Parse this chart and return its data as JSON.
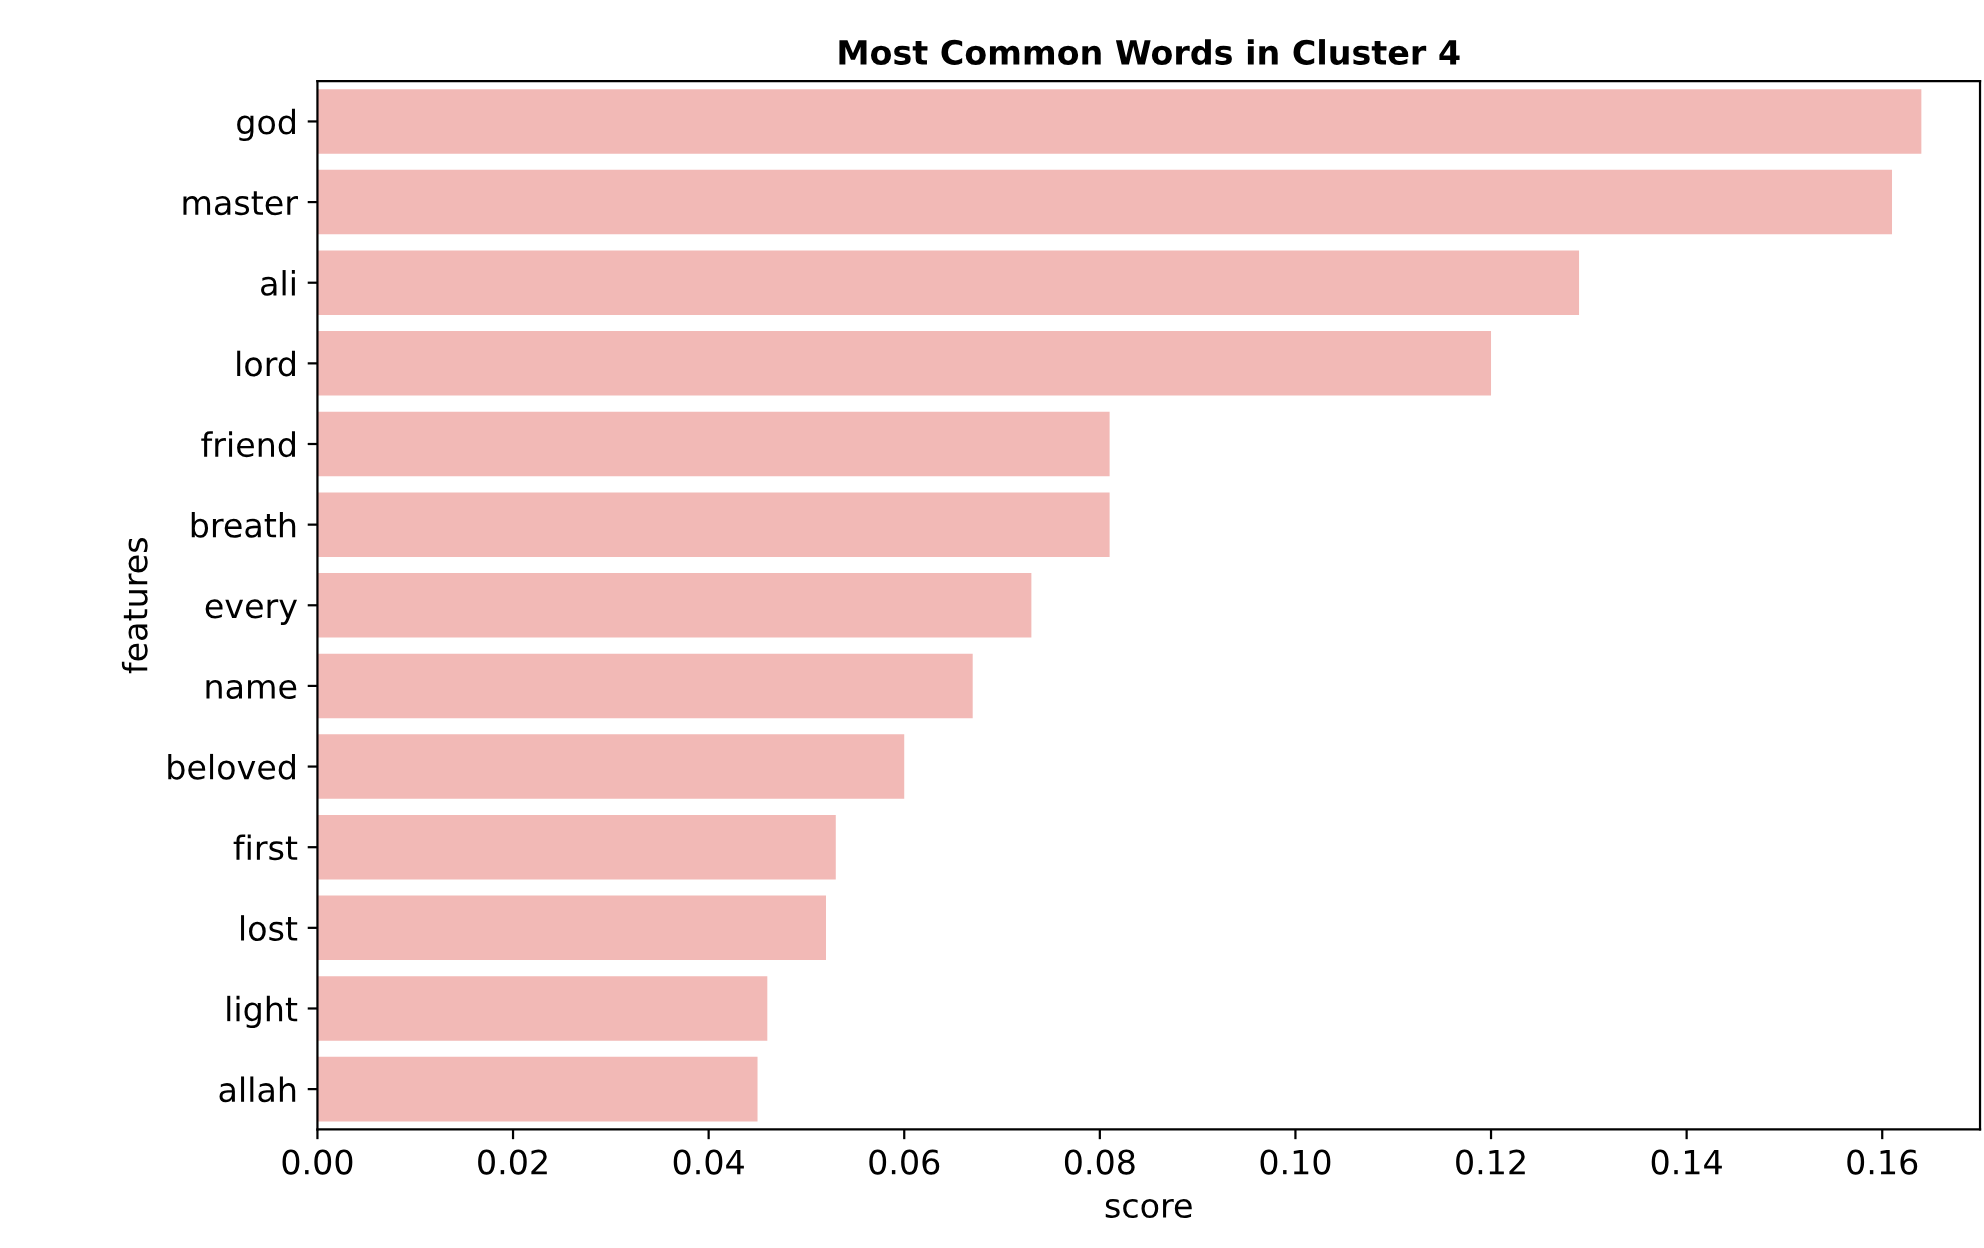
{
  "chart_data": {
    "type": "bar",
    "orientation": "horizontal",
    "title": "Most Common Words in Cluster 4",
    "xlabel": "score",
    "ylabel": "features",
    "categories": [
      "god",
      "master",
      "ali",
      "lord",
      "friend",
      "breath",
      "every",
      "name",
      "beloved",
      "first",
      "lost",
      "light",
      "allah"
    ],
    "values": [
      0.164,
      0.161,
      0.129,
      0.12,
      0.081,
      0.081,
      0.073,
      0.067,
      0.06,
      0.053,
      0.052,
      0.046,
      0.045
    ],
    "color": "#f2b9b6",
    "xlim": [
      0,
      0.17
    ],
    "xticks": [
      {
        "value": 0,
        "label": "0.00"
      },
      0.02,
      0.04,
      0.06,
      0.08,
      {
        "value": 0.1,
        "label": "0.10"
      },
      0.12,
      0.14,
      0.16
    ],
    "grid": false
  }
}
